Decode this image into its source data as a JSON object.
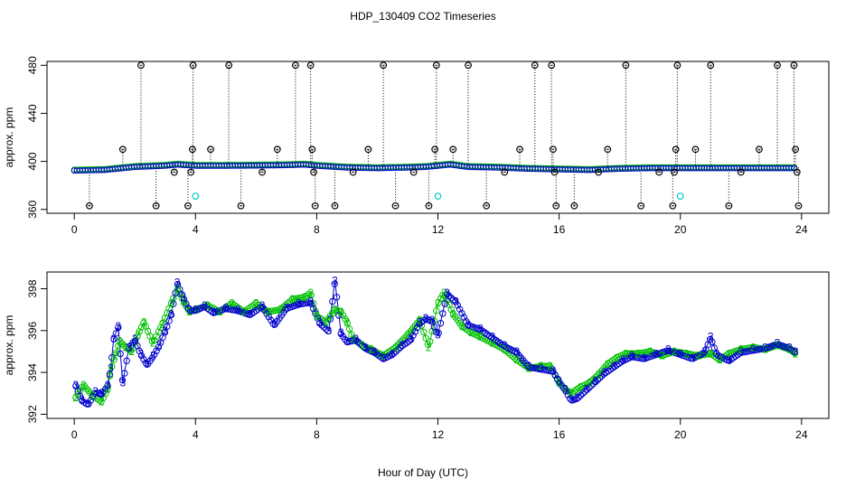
{
  "title": "HDP_130409  CO2 Timeseries",
  "xlabel": "Hour of Day (UTC)",
  "colors": {
    "green": "#00c000",
    "blue": "#0000cc",
    "cyan": "#00cccc",
    "black": "#000000"
  },
  "chart_data": [
    {
      "type": "scatter",
      "ylabel": "approx. ppm",
      "xlim": [
        -0.9,
        24.9
      ],
      "ylim": [
        356.8,
        483.2
      ],
      "xticks": [
        "0",
        "4",
        "8",
        "12",
        "16",
        "20",
        "24"
      ],
      "yticks": [
        "360",
        "400",
        "440",
        "480"
      ],
      "baseline": {
        "x": [
          0.0,
          1.0,
          2.0,
          3.0,
          3.4,
          4.0,
          5.0,
          6.0,
          7.0,
          7.6,
          8.0,
          9.0,
          10.0,
          11.0,
          11.6,
          12.0,
          12.4,
          13.0,
          14.0,
          15.0,
          16.0,
          17.0,
          18.0,
          19.0,
          20.0,
          21.0,
          22.0,
          23.0,
          23.8
        ],
        "y": [
          393,
          393.5,
          396,
          397,
          398,
          397,
          397,
          397.2,
          397.5,
          398,
          397,
          395.5,
          395,
          395.5,
          396,
          397,
          398,
          396,
          395.5,
          394.5,
          394,
          393.5,
          394.5,
          395,
          395,
          395,
          395,
          395,
          395
        ]
      },
      "outliers": {
        "x": [
          0.5,
          1.6,
          2.2,
          2.7,
          3.3,
          3.75,
          3.85,
          3.9,
          3.92,
          4.5,
          5.1,
          5.5,
          6.2,
          6.7,
          7.3,
          7.8,
          7.85,
          7.9,
          7.95,
          8.6,
          9.2,
          9.7,
          10.2,
          10.6,
          11.2,
          11.7,
          11.9,
          11.95,
          12.5,
          13.0,
          13.6,
          14.2,
          14.7,
          15.2,
          15.75,
          15.8,
          15.85,
          15.9,
          16.5,
          17.3,
          17.6,
          18.2,
          18.7,
          19.3,
          19.75,
          19.8,
          19.85,
          19.9,
          20.5,
          21.0,
          21.6,
          22.0,
          22.6,
          23.2,
          23.75,
          23.8,
          23.85,
          23.9
        ],
        "y": [
          363,
          410,
          480,
          363,
          391,
          363,
          391,
          410,
          480,
          410,
          480,
          363,
          391,
          410,
          480,
          480,
          410,
          391,
          363,
          363,
          391,
          410,
          480,
          363,
          391,
          363,
          410,
          480,
          410,
          480,
          363,
          391,
          410,
          480,
          480,
          410,
          391,
          363,
          363,
          391,
          410,
          480,
          363,
          391,
          363,
          391,
          410,
          480,
          410,
          480,
          363,
          391,
          410,
          480,
          480,
          410,
          391,
          363
        ]
      },
      "cyan_points": {
        "x": [
          4.0,
          12.0,
          20.0
        ],
        "y": [
          371,
          371,
          371
        ]
      }
    },
    {
      "type": "scatter",
      "ylabel": "approx. ppm",
      "xlim": [
        -0.9,
        24.9
      ],
      "ylim": [
        391.8,
        398.8
      ],
      "xticks": [
        "0",
        "4",
        "8",
        "12",
        "16",
        "20",
        "24"
      ],
      "yticks": [
        "392",
        "394",
        "396",
        "398"
      ],
      "series": [
        {
          "label_char": "2",
          "x": [
            0.05,
            0.3,
            0.6,
            0.9,
            1.1,
            1.2,
            1.35,
            1.5,
            1.7,
            1.9,
            2.1,
            2.3,
            2.6,
            2.9,
            3.2,
            3.4,
            3.6,
            3.8,
            4.0,
            4.4,
            4.8,
            5.2,
            5.6,
            6.0,
            6.4,
            6.8,
            7.2,
            7.6,
            7.8,
            8.0,
            8.3,
            8.6,
            8.8,
            9.0,
            9.2,
            9.5,
            9.8,
            10.2,
            10.6,
            11.0,
            11.4,
            11.7,
            12.0,
            12.2,
            12.5,
            12.8,
            13.1,
            13.4,
            13.8,
            14.2,
            14.6,
            15.0,
            15.4,
            15.7,
            16.0,
            16.2,
            16.4,
            16.7,
            17.0,
            17.3,
            17.6,
            17.9,
            18.2,
            18.6,
            19.0,
            19.4,
            19.8,
            20.2,
            20.6,
            21.0,
            21.3,
            21.6,
            22.0,
            22.4,
            22.8,
            23.2,
            23.6,
            23.8
          ],
          "y": [
            392.8,
            393.4,
            392.9,
            392.6,
            393.2,
            394.1,
            394.8,
            395.5,
            395.2,
            395.0,
            395.8,
            396.4,
            395.4,
            396.3,
            397.3,
            398.0,
            397.4,
            396.9,
            397.0,
            397.2,
            396.9,
            397.3,
            396.9,
            397.3,
            396.9,
            397.0,
            397.5,
            397.6,
            397.8,
            396.7,
            396.4,
            397.0,
            396.9,
            396.4,
            395.6,
            395.3,
            395.1,
            394.8,
            395.2,
            395.8,
            396.5,
            395.2,
            397.3,
            397.8,
            396.8,
            396.2,
            395.9,
            395.7,
            395.4,
            395.1,
            394.6,
            394.2,
            394.3,
            394.3,
            393.5,
            393.2,
            393.0,
            393.3,
            393.5,
            393.9,
            394.4,
            394.7,
            394.9,
            394.9,
            395.0,
            394.8,
            395.0,
            394.9,
            394.8,
            394.9,
            394.6,
            394.9,
            395.1,
            395.2,
            395.1,
            395.3,
            395.1,
            394.9
          ]
        },
        {
          "label_char": "3",
          "x": [
            0.05,
            0.25,
            0.45,
            0.7,
            0.9,
            1.1,
            1.2,
            1.3,
            1.45,
            1.6,
            1.8,
            2.0,
            2.2,
            2.4,
            2.6,
            2.8,
            3.0,
            3.2,
            3.4,
            3.6,
            3.8,
            4.0,
            4.3,
            4.6,
            5.0,
            5.4,
            5.8,
            6.2,
            6.6,
            7.0,
            7.4,
            7.8,
            8.1,
            8.4,
            8.6,
            8.8,
            9.0,
            9.3,
            9.6,
            9.9,
            10.2,
            10.5,
            10.8,
            11.1,
            11.4,
            11.6,
            11.8,
            12.0,
            12.3,
            12.6,
            13.0,
            13.4,
            13.8,
            14.2,
            14.6,
            15.0,
            15.4,
            15.8,
            16.0,
            16.2,
            16.4,
            16.6,
            16.9,
            17.2,
            17.5,
            17.8,
            18.1,
            18.4,
            18.8,
            19.2,
            19.6,
            20.0,
            20.4,
            20.8,
            21.0,
            21.2,
            21.6,
            22.0,
            22.4,
            22.8,
            23.2,
            23.6,
            23.8
          ],
          "y": [
            393.4,
            392.7,
            392.5,
            393.1,
            393.0,
            393.4,
            394.2,
            395.6,
            396.2,
            393.5,
            395.2,
            395.6,
            394.9,
            394.4,
            394.8,
            395.3,
            396.0,
            396.8,
            398.3,
            397.6,
            397.0,
            397.0,
            397.2,
            396.9,
            397.1,
            397.0,
            396.8,
            397.2,
            396.3,
            397.1,
            397.3,
            397.4,
            396.4,
            396.0,
            398.4,
            395.9,
            395.5,
            395.6,
            395.2,
            395.0,
            394.7,
            394.9,
            395.3,
            395.6,
            396.4,
            396.6,
            396.5,
            395.8,
            397.8,
            397.4,
            396.3,
            396.1,
            395.7,
            395.3,
            395.0,
            394.3,
            394.2,
            394.1,
            393.6,
            393.2,
            392.7,
            392.8,
            393.2,
            393.6,
            394.0,
            394.3,
            394.6,
            394.8,
            394.7,
            394.9,
            395.1,
            394.9,
            394.7,
            395.0,
            395.7,
            394.9,
            394.6,
            395.0,
            395.1,
            395.2,
            395.4,
            395.2,
            395.0
          ]
        }
      ]
    }
  ]
}
